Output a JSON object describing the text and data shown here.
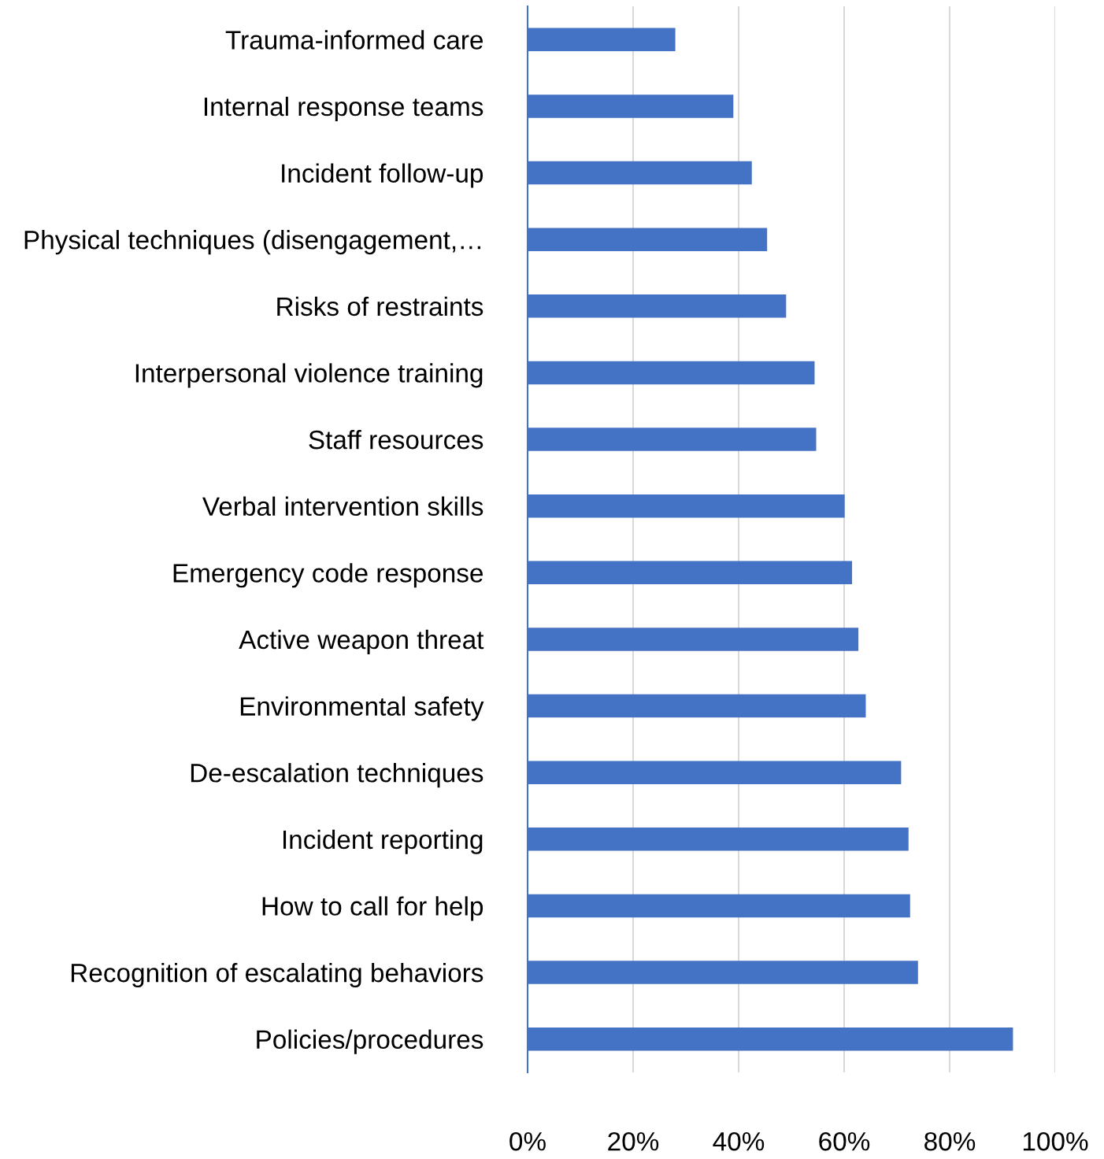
{
  "chart_data": {
    "type": "bar",
    "orientation": "horizontal",
    "categories": [
      "Trauma-informed care",
      "Internal response teams",
      "Incident follow-up",
      "Physical techniques (disengagement,…",
      "Risks of restraints",
      "Interpersonal violence training",
      "Staff resources",
      "Verbal intervention skills",
      "Emergency code response",
      "Active weapon threat",
      "Environmental safety",
      "De-escalation techniques",
      "Incident reporting",
      "How to call for help",
      "Recognition of escalating behaviors",
      "Policies/procedures"
    ],
    "values": [
      28,
      39,
      42.5,
      45.4,
      49,
      54.4,
      54.7,
      60.1,
      61.5,
      62.7,
      64.1,
      70.8,
      72.2,
      72.5,
      74,
      92
    ],
    "color": "#4472c4",
    "xlim": [
      0,
      100
    ],
    "xticks": [
      {
        "value": 0,
        "label": "0%"
      },
      {
        "value": 20,
        "label": "20%"
      },
      {
        "value": 40,
        "label": "40%"
      },
      {
        "value": 60,
        "label": "60%"
      },
      {
        "value": 80,
        "label": "80%"
      },
      {
        "value": 100,
        "label": "100%"
      }
    ],
    "grid": "x"
  }
}
